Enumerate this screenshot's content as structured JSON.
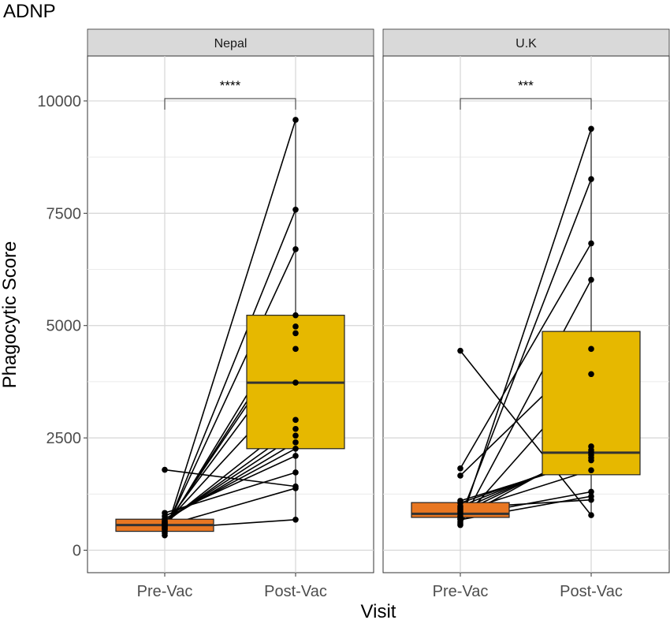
{
  "chart_data": {
    "type": "box",
    "title": "ADNP",
    "xlabel": "Visit",
    "ylabel": "Phagocytic Score",
    "ylim": [
      -500,
      11000
    ],
    "yticks": [
      0,
      2500,
      5000,
      7500,
      10000
    ],
    "categories": [
      "Pre-Vac",
      "Post-Vac"
    ],
    "grid": true,
    "colors": {
      "Pre-Vac": "#e87722",
      "Post-Vac": "#e6b800"
    },
    "panels": [
      {
        "name": "Nepal",
        "significance": "****",
        "boxes": [
          {
            "category": "Pre-Vac",
            "q1": 420,
            "median": 560,
            "q3": 690,
            "whisker_low": 330,
            "whisker_high": 830
          },
          {
            "category": "Post-Vac",
            "q1": 2260,
            "median": 3730,
            "q3": 5230,
            "whisker_low": 680,
            "whisker_high": 9580
          }
        ],
        "pairs": [
          [
            330,
            9580
          ],
          [
            380,
            7580
          ],
          [
            420,
            6700
          ],
          [
            460,
            5230
          ],
          [
            500,
            4980
          ],
          [
            520,
            4830
          ],
          [
            560,
            4480
          ],
          [
            580,
            3730
          ],
          [
            600,
            2900
          ],
          [
            620,
            2700
          ],
          [
            640,
            2550
          ],
          [
            660,
            2400
          ],
          [
            700,
            2260
          ],
          [
            760,
            2100
          ],
          [
            830,
            1730
          ],
          [
            1790,
            1420
          ],
          [
            540,
            1380
          ],
          [
            480,
            680
          ]
        ]
      },
      {
        "name": "U.K",
        "significance": "***",
        "boxes": [
          {
            "category": "Pre-Vac",
            "q1": 730,
            "median": 810,
            "q3": 1060,
            "whisker_low": 560,
            "whisker_high": 1100
          },
          {
            "category": "Post-Vac",
            "q1": 1680,
            "median": 2170,
            "q3": 4870,
            "whisker_low": 780,
            "whisker_high": 9380
          }
        ],
        "pairs": [
          [
            4440,
            780
          ],
          [
            590,
            9380
          ],
          [
            730,
            8260
          ],
          [
            1820,
            6830
          ],
          [
            560,
            6020
          ],
          [
            1660,
            4480
          ],
          [
            630,
            3920
          ],
          [
            700,
            2310
          ],
          [
            820,
            2230
          ],
          [
            900,
            2180
          ],
          [
            980,
            2120
          ],
          [
            1050,
            2060
          ],
          [
            1100,
            2000
          ],
          [
            860,
            1780
          ],
          [
            760,
            1300
          ],
          [
            680,
            1200
          ],
          [
            940,
            1120
          ]
        ]
      }
    ]
  }
}
